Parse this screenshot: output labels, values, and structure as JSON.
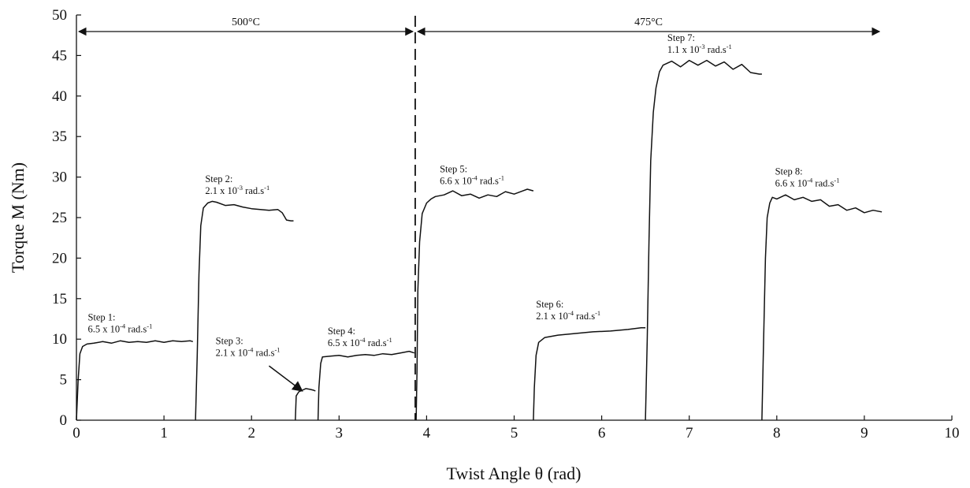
{
  "chart_data": {
    "type": "line",
    "xlabel": "Twist Angle θ (rad)",
    "ylabel": "Torque M (Nm)",
    "xlim": [
      0,
      10
    ],
    "ylim": [
      0,
      50
    ],
    "xticks": [
      0,
      1,
      2,
      3,
      4,
      5,
      6,
      7,
      8,
      9,
      10
    ],
    "yticks": [
      0,
      5,
      10,
      15,
      20,
      25,
      30,
      35,
      40,
      45,
      50
    ],
    "grid": false,
    "regions": [
      {
        "label": "500°C",
        "from": 0,
        "to": 3.87
      },
      {
        "label": "475°C",
        "from": 3.87,
        "to": 9.2
      }
    ],
    "divider_x": 3.87,
    "series": [
      {
        "name": "Step 1",
        "rate": "6.5 x 10^-4 rad.s^-1",
        "points": [
          [
            0.0,
            0
          ],
          [
            0.02,
            5
          ],
          [
            0.04,
            8.2
          ],
          [
            0.07,
            9.1
          ],
          [
            0.12,
            9.4
          ],
          [
            0.2,
            9.5
          ],
          [
            0.3,
            9.7
          ],
          [
            0.4,
            9.5
          ],
          [
            0.5,
            9.8
          ],
          [
            0.6,
            9.6
          ],
          [
            0.7,
            9.7
          ],
          [
            0.8,
            9.6
          ],
          [
            0.9,
            9.8
          ],
          [
            1.0,
            9.6
          ],
          [
            1.1,
            9.8
          ],
          [
            1.2,
            9.7
          ],
          [
            1.3,
            9.8
          ],
          [
            1.33,
            9.7
          ]
        ]
      },
      {
        "name": "Step 2",
        "rate": "2.1 x 10^-3 rad.s^-1",
        "points": [
          [
            1.36,
            0
          ],
          [
            1.38,
            8
          ],
          [
            1.4,
            18
          ],
          [
            1.42,
            24
          ],
          [
            1.45,
            26.2
          ],
          [
            1.5,
            26.8
          ],
          [
            1.55,
            27.0
          ],
          [
            1.6,
            26.9
          ],
          [
            1.7,
            26.5
          ],
          [
            1.8,
            26.6
          ],
          [
            1.9,
            26.3
          ],
          [
            2.0,
            26.1
          ],
          [
            2.1,
            26.0
          ],
          [
            2.2,
            25.9
          ],
          [
            2.3,
            26.0
          ],
          [
            2.35,
            25.6
          ],
          [
            2.4,
            24.7
          ],
          [
            2.45,
            24.6
          ],
          [
            2.48,
            24.6
          ]
        ]
      },
      {
        "name": "Step 3",
        "rate": "2.1 x 10^-4 rad.s^-1",
        "points": [
          [
            2.5,
            0
          ],
          [
            2.51,
            3.0
          ],
          [
            2.54,
            3.5
          ],
          [
            2.58,
            3.7
          ],
          [
            2.62,
            3.9
          ],
          [
            2.67,
            3.8
          ],
          [
            2.71,
            3.7
          ],
          [
            2.73,
            3.6
          ]
        ]
      },
      {
        "name": "Step 4",
        "rate": "6.5 x 10^-4 rad.s^-1",
        "points": [
          [
            2.76,
            0
          ],
          [
            2.77,
            4
          ],
          [
            2.79,
            7.0
          ],
          [
            2.81,
            7.8
          ],
          [
            2.9,
            7.9
          ],
          [
            3.0,
            8.0
          ],
          [
            3.1,
            7.8
          ],
          [
            3.2,
            8.0
          ],
          [
            3.3,
            8.1
          ],
          [
            3.4,
            8.0
          ],
          [
            3.5,
            8.2
          ],
          [
            3.6,
            8.1
          ],
          [
            3.7,
            8.3
          ],
          [
            3.8,
            8.5
          ],
          [
            3.86,
            8.3
          ]
        ]
      },
      {
        "name": "Step 5",
        "rate": "6.6 x 10^-4 rad.s^-1",
        "points": [
          [
            3.88,
            0
          ],
          [
            3.89,
            6
          ],
          [
            3.9,
            16
          ],
          [
            3.92,
            22
          ],
          [
            3.95,
            25.5
          ],
          [
            4.0,
            26.8
          ],
          [
            4.05,
            27.3
          ],
          [
            4.1,
            27.6
          ],
          [
            4.2,
            27.8
          ],
          [
            4.3,
            28.3
          ],
          [
            4.4,
            27.7
          ],
          [
            4.5,
            27.9
          ],
          [
            4.6,
            27.4
          ],
          [
            4.7,
            27.8
          ],
          [
            4.8,
            27.6
          ],
          [
            4.9,
            28.2
          ],
          [
            5.0,
            27.9
          ],
          [
            5.1,
            28.3
          ],
          [
            5.15,
            28.5
          ],
          [
            5.22,
            28.3
          ]
        ]
      },
      {
        "name": "Step 6",
        "rate": "2.1 x 10^-4 rad.s^-1",
        "points": [
          [
            5.22,
            0
          ],
          [
            5.23,
            4
          ],
          [
            5.25,
            8
          ],
          [
            5.28,
            9.6
          ],
          [
            5.35,
            10.2
          ],
          [
            5.5,
            10.5
          ],
          [
            5.7,
            10.7
          ],
          [
            5.9,
            10.9
          ],
          [
            6.1,
            11.0
          ],
          [
            6.3,
            11.2
          ],
          [
            6.45,
            11.4
          ],
          [
            6.5,
            11.4
          ]
        ]
      },
      {
        "name": "Step 7",
        "rate": "1.1 x 10^-3 rad.s^-1",
        "points": [
          [
            6.5,
            0
          ],
          [
            6.52,
            10
          ],
          [
            6.54,
            22
          ],
          [
            6.56,
            32
          ],
          [
            6.59,
            38
          ],
          [
            6.62,
            41
          ],
          [
            6.66,
            43
          ],
          [
            6.7,
            43.8
          ],
          [
            6.8,
            44.3
          ],
          [
            6.9,
            43.6
          ],
          [
            7.0,
            44.4
          ],
          [
            7.1,
            43.8
          ],
          [
            7.2,
            44.4
          ],
          [
            7.3,
            43.7
          ],
          [
            7.4,
            44.2
          ],
          [
            7.5,
            43.3
          ],
          [
            7.6,
            43.9
          ],
          [
            7.7,
            42.9
          ],
          [
            7.8,
            42.7
          ],
          [
            7.83,
            42.7
          ]
        ]
      },
      {
        "name": "Step 8",
        "rate": "6.6 x 10^-4 rad.s^-1",
        "points": [
          [
            7.83,
            0
          ],
          [
            7.85,
            10
          ],
          [
            7.87,
            20
          ],
          [
            7.89,
            25
          ],
          [
            7.92,
            26.8
          ],
          [
            7.95,
            27.5
          ],
          [
            8.0,
            27.3
          ],
          [
            8.1,
            27.8
          ],
          [
            8.2,
            27.2
          ],
          [
            8.3,
            27.5
          ],
          [
            8.4,
            27.0
          ],
          [
            8.5,
            27.2
          ],
          [
            8.6,
            26.4
          ],
          [
            8.7,
            26.6
          ],
          [
            8.8,
            25.9
          ],
          [
            8.9,
            26.2
          ],
          [
            9.0,
            25.6
          ],
          [
            9.1,
            25.9
          ],
          [
            9.2,
            25.7
          ]
        ]
      }
    ],
    "annotations": [
      {
        "step": "Step 1:",
        "base": "6.5 x 10",
        "exp": "-4",
        "unit": " rad.s",
        "unit_exp": "-1",
        "x": 0.13,
        "y": 12.3
      },
      {
        "step": "Step 2:",
        "base": "2.1 x 10",
        "exp": "-3",
        "unit": " rad.s",
        "unit_exp": "-1",
        "x": 1.47,
        "y": 29.4
      },
      {
        "step": "Step 3:",
        "base": "2.1 x 10",
        "exp": "-4",
        "unit": " rad.s",
        "unit_exp": "-1",
        "x": 1.59,
        "y": 9.4
      },
      {
        "step": "Step 4:",
        "base": "6.5 x 10",
        "exp": "-4",
        "unit": " rad.s",
        "unit_exp": "-1",
        "x": 2.87,
        "y": 10.6
      },
      {
        "step": "Step 5:",
        "base": "6.6 x 10",
        "exp": "-4",
        "unit": " rad.s",
        "unit_exp": "-1",
        "x": 4.15,
        "y": 30.6
      },
      {
        "step": "Step 6:",
        "base": "2.1 x 10",
        "exp": "-4",
        "unit": " rad.s",
        "unit_exp": "-1",
        "x": 5.25,
        "y": 13.9
      },
      {
        "step": "Step 7:",
        "base": "1.1 x 10",
        "exp": "-3",
        "unit": " rad.s",
        "unit_exp": "-1",
        "x": 6.75,
        "y": 46.8
      },
      {
        "step": "Step 8:",
        "base": "6.6 x 10",
        "exp": "-4",
        "unit": " rad.s",
        "unit_exp": "-1",
        "x": 7.98,
        "y": 30.3
      }
    ],
    "arrow_step3": {
      "from": [
        2.2,
        6.7
      ],
      "to": [
        2.58,
        3.6
      ]
    }
  }
}
